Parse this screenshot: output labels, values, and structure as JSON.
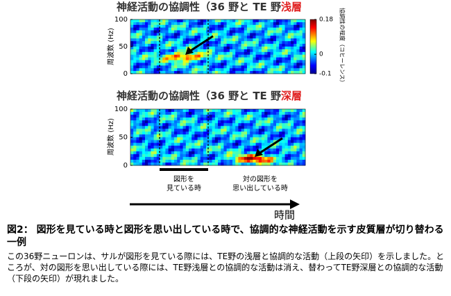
{
  "panels": [
    {
      "title": "神経活動の協調性（36 野と TE 野",
      "title_highlight": "浅層",
      "y_label": "周波数 (Hz)",
      "yticks": [
        100,
        50,
        0
      ]
    },
    {
      "title": "神経活動の協調性（36 野と TE 野",
      "title_highlight": "深層",
      "y_label": "周波数 (Hz)",
      "yticks": [
        100,
        50,
        0
      ]
    }
  ],
  "colorbar": {
    "label": "協調性の程度（コヒーレンス）",
    "ticks": [
      0.18,
      0,
      -0.1
    ]
  },
  "annotations": [
    [
      "図形を",
      "見ている時"
    ],
    [
      "対の図形を",
      "思い出している時"
    ]
  ],
  "time_label": "時間",
  "caption": {
    "title": "図2： 図形を見ている時と図形を思い出している時で、協調的な神経活動を示す皮質層が切り替わる一例",
    "body": "この36野ニューロンは、サルが図形を見ている際には、TE野の浅層と協調的な活動（上段の矢印）を示しました。ところが、対の図形を思い出している際には、TE野浅層との協調的な活動は消え、替わってTE野深層との協調的な活動（下段の矢印）が現れました。"
  }
}
